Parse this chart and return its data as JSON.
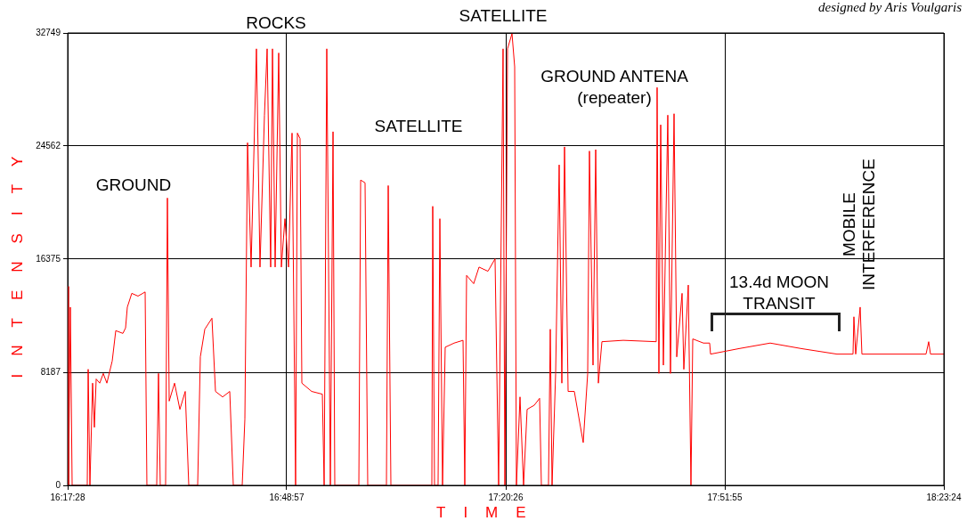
{
  "chart_data": {
    "type": "line",
    "xlabel": "TIME",
    "ylabel": "INTENSITY",
    "annotations": [
      "designed by Aris Voulgaris",
      "GROUND",
      "ROCKS",
      "SATELLITE",
      "SATELLITE",
      "GROUND ANTENA (repeater)",
      "13.4d MOON TRANSIT",
      "MOBILE INTERFERENCE"
    ],
    "xlim": [
      16.2911,
      18.39
    ],
    "xticks": [
      {
        "value": 16.2911,
        "label": "16:17:28"
      },
      {
        "value": 16.8158,
        "label": "16:48:57"
      },
      {
        "value": 17.3406,
        "label": "17:20:26"
      },
      {
        "value": 17.8653,
        "label": "17:51:55"
      },
      {
        "value": 18.39,
        "label": "18:23:24"
      }
    ],
    "ylim": [
      0,
      32749
    ],
    "yticks": [
      0,
      8187,
      16375,
      24562,
      32749
    ],
    "grid": true,
    "legend": false,
    "marker": "none",
    "line_style": "solid",
    "series": [
      {
        "color": "#ff0000",
        "x": [
          16.2911,
          16.2932,
          16.2975,
          16.3018,
          16.338,
          16.3402,
          16.3444,
          16.3508,
          16.3551,
          16.3594,
          16.3679,
          16.3764,
          16.385,
          16.3978,
          16.4063,
          16.4234,
          16.4298,
          16.434,
          16.4447,
          16.4596,
          16.4767,
          16.4809,
          16.5044,
          16.5087,
          16.5129,
          16.5257,
          16.53,
          16.5343,
          16.5471,
          16.5599,
          16.5727,
          16.5812,
          16.6025,
          16.6089,
          16.6196,
          16.6367,
          16.6452,
          16.6623,
          16.6794,
          16.6879,
          16.7092,
          16.7156,
          16.722,
          16.7305,
          16.7433,
          16.7518,
          16.7625,
          16.7689,
          16.7774,
          16.7817,
          16.7881,
          16.7966,
          16.803,
          16.8115,
          16.8201,
          16.8286,
          16.8371,
          16.8414,
          16.8478,
          16.8521,
          16.8756,
          16.9012,
          16.9055,
          16.9118,
          16.9204,
          16.9268,
          16.931,
          16.9886,
          16.9929,
          17.0035,
          17.0099,
          17.0547,
          17.059,
          17.0654,
          17.1635,
          17.1656,
          17.1699,
          17.1784,
          17.1827,
          17.1891,
          17.1955,
          17.2168,
          17.2382,
          17.2424,
          17.2467,
          17.2637,
          17.2765,
          17.2979,
          17.3149,
          17.3235,
          17.3341,
          17.3384,
          17.3448,
          17.3555,
          17.3619,
          17.3661,
          17.3747,
          17.3832,
          17.3917,
          17.4088,
          17.4216,
          17.4259,
          17.4429,
          17.4472,
          17.4515,
          17.46,
          17.4685,
          17.4749,
          17.4813,
          17.4899,
          17.5048,
          17.5197,
          17.5261,
          17.5368,
          17.541,
          17.5496,
          17.556,
          17.5624,
          17.5709,
          17.6221,
          17.701,
          17.7031,
          17.7074,
          17.7117,
          17.7181,
          17.7287,
          17.7351,
          17.7437,
          17.7501,
          17.7629,
          17.7671,
          17.7778,
          17.7842,
          17.7885,
          17.8141,
          17.829,
          17.8311,
          17.8994,
          17.974,
          18.0487,
          18.134,
          18.1724,
          18.1745,
          18.1788,
          18.1895,
          18.1937,
          18.3473,
          18.3537,
          18.358,
          18.39
        ],
        "values": [
          14400,
          0,
          12900,
          0,
          0,
          8400,
          0,
          7400,
          4200,
          7700,
          7400,
          8100,
          7400,
          9000,
          11200,
          11000,
          11400,
          12900,
          13900,
          13700,
          14000,
          0,
          0,
          8100,
          0,
          0,
          20800,
          6100,
          7400,
          5500,
          6800,
          0,
          0,
          9300,
          11300,
          12100,
          6800,
          6400,
          6800,
          0,
          0,
          4800,
          24800,
          15800,
          31600,
          15800,
          26800,
          31600,
          15800,
          31600,
          15800,
          31300,
          15800,
          19300,
          15800,
          25500,
          0,
          25500,
          25100,
          7400,
          6800,
          6600,
          0,
          31600,
          0,
          25600,
          0,
          0,
          22100,
          21900,
          0,
          0,
          21700,
          0,
          0,
          20200,
          0,
          0,
          19300,
          0,
          10000,
          10300,
          10500,
          0,
          15200,
          14600,
          15800,
          15500,
          16400,
          0,
          31600,
          0,
          31600,
          32700,
          30300,
          0,
          6400,
          0,
          5500,
          5800,
          6300,
          0,
          0,
          11300,
          0,
          8100,
          23200,
          7400,
          24500,
          6800,
          6800,
          4200,
          3100,
          8100,
          24200,
          8700,
          24300,
          7400,
          10400,
          10500,
          10400,
          28800,
          8100,
          26100,
          8700,
          26800,
          8100,
          26900,
          9300,
          13900,
          8400,
          14500,
          0,
          10600,
          10300,
          10300,
          9500,
          9900,
          10300,
          9900,
          9500,
          9500,
          12200,
          9500,
          12900,
          9500,
          9500,
          10400,
          9500,
          9500
        ]
      }
    ]
  }
}
